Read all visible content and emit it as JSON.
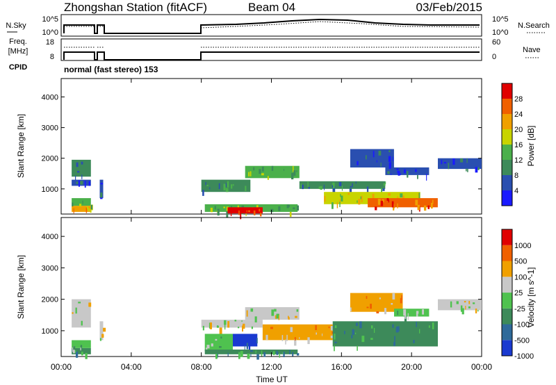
{
  "header": {
    "station": "Zhongshan Station (fitACF)",
    "beam": "Beam 04",
    "date": "03/Feb/2015"
  },
  "top_panels": {
    "nsky_label": "N.Sky",
    "nsky_ticks": [
      "10^5",
      "10^0"
    ],
    "nsearch_label": "N.Search",
    "nsearch_ticks": [
      "10^5",
      "10^0"
    ],
    "freq_label": "Freq.",
    "freq_unit": "[MHz]",
    "freq_ticks": [
      "18",
      "8"
    ],
    "nave_label": "Nave",
    "nave_ticks": [
      "60",
      "0"
    ],
    "cpid_label": "CPID",
    "cpid_text": "normal (fast stereo) 153"
  },
  "xaxis": {
    "label": "Time UT",
    "ticks": [
      "00:00",
      "04:00",
      "08:00",
      "12:00",
      "16:00",
      "20:00",
      "00:00"
    ]
  },
  "chart_data": [
    {
      "type": "heatmap",
      "title": "Power",
      "ylabel": "Slant Range [km]",
      "yticks": [
        1000,
        2000,
        3000,
        4000
      ],
      "ylim": [
        180,
        4600
      ],
      "xlim": [
        0,
        24
      ],
      "colorbar": {
        "label": "Power [dB]",
        "ticks": [
          "4",
          "8",
          "12",
          "16",
          "20",
          "24",
          "28"
        ],
        "colors": [
          "#1a1aff",
          "#2a4fb0",
          "#3d8a5a",
          "#4bb04b",
          "#c8d400",
          "#f0a000",
          "#f06000",
          "#e00000"
        ]
      },
      "regions": [
        {
          "t0": 0.6,
          "t1": 1.7,
          "r0": 1400,
          "r1": 1950,
          "level": 2
        },
        {
          "t0": 0.6,
          "t1": 1.7,
          "r0": 1100,
          "r1": 1300,
          "level": 1
        },
        {
          "t0": 0.6,
          "t1": 1.7,
          "r0": 250,
          "r1": 450,
          "level": 5
        },
        {
          "t0": 0.6,
          "t1": 1.7,
          "r0": 450,
          "r1": 700,
          "level": 3
        },
        {
          "t0": 2.2,
          "t1": 2.4,
          "r0": 700,
          "r1": 1300,
          "level": 1
        },
        {
          "t0": 8.0,
          "t1": 10.8,
          "r0": 900,
          "r1": 1300,
          "level": 2
        },
        {
          "t0": 8.2,
          "t1": 13.5,
          "r0": 250,
          "r1": 500,
          "level": 3
        },
        {
          "t0": 9.5,
          "t1": 11.5,
          "r0": 200,
          "r1": 400,
          "level": 7
        },
        {
          "t0": 10.5,
          "t1": 13.6,
          "r0": 1350,
          "r1": 1750,
          "level": 3
        },
        {
          "t0": 13.6,
          "t1": 18.5,
          "r0": 1000,
          "r1": 1250,
          "level": 2
        },
        {
          "t0": 15.0,
          "t1": 20.5,
          "r0": 500,
          "r1": 900,
          "level": 4
        },
        {
          "t0": 17.5,
          "t1": 21.5,
          "r0": 400,
          "r1": 700,
          "level": 6
        },
        {
          "t0": 18.5,
          "t1": 21.0,
          "r0": 1450,
          "r1": 1700,
          "level": 1
        },
        {
          "t0": 16.5,
          "t1": 19.0,
          "r0": 1700,
          "r1": 2300,
          "level": 1
        },
        {
          "t0": 21.5,
          "t1": 24.0,
          "r0": 1650,
          "r1": 2000,
          "level": 1
        }
      ]
    },
    {
      "type": "heatmap",
      "title": "Velocity",
      "ylabel": "Slant Range [km]",
      "yticks": [
        1000,
        2000,
        3000,
        4000
      ],
      "ylim": [
        180,
        4600
      ],
      "xlim": [
        0,
        24
      ],
      "colorbar": {
        "label": "Velocity [m s^-1]",
        "ticks": [
          "1000",
          "500",
          "100",
          "25",
          "-25",
          "-100",
          "-500",
          "-1000"
        ],
        "colors": [
          "#1a3ad0",
          "#2f6a9a",
          "#3d8a5a",
          "#4fc24f",
          "#c8c8c8",
          "#f0a000",
          "#f06000",
          "#e00000"
        ]
      },
      "regions": [
        {
          "t0": 0.6,
          "t1": 1.7,
          "r0": 1100,
          "r1": 2000,
          "level": 4
        },
        {
          "t0": 0.6,
          "t1": 1.7,
          "r0": 250,
          "r1": 450,
          "level": 2
        },
        {
          "t0": 0.6,
          "t1": 1.7,
          "r0": 450,
          "r1": 700,
          "level": 3
        },
        {
          "t0": 2.2,
          "t1": 2.4,
          "r0": 700,
          "r1": 1300,
          "level": 4
        },
        {
          "t0": 8.0,
          "t1": 11.5,
          "r0": 1100,
          "r1": 1350,
          "level": 4
        },
        {
          "t0": 8.2,
          "t1": 9.8,
          "r0": 350,
          "r1": 900,
          "level": 3
        },
        {
          "t0": 9.8,
          "t1": 11.2,
          "r0": 500,
          "r1": 900,
          "level": 0
        },
        {
          "t0": 8.2,
          "t1": 13.5,
          "r0": 250,
          "r1": 400,
          "level": 2
        },
        {
          "t0": 10.5,
          "t1": 13.6,
          "r0": 1350,
          "r1": 1750,
          "level": 4
        },
        {
          "t0": 11.5,
          "t1": 15.5,
          "r0": 700,
          "r1": 1200,
          "level": 5
        },
        {
          "t0": 15.5,
          "t1": 21.5,
          "r0": 500,
          "r1": 1300,
          "level": 2
        },
        {
          "t0": 16.5,
          "t1": 19.5,
          "r0": 1600,
          "r1": 2200,
          "level": 5
        },
        {
          "t0": 19.0,
          "t1": 21.0,
          "r0": 1450,
          "r1": 1700,
          "level": 3
        },
        {
          "t0": 21.5,
          "t1": 24.0,
          "r0": 1650,
          "r1": 2000,
          "level": 4
        }
      ]
    }
  ]
}
